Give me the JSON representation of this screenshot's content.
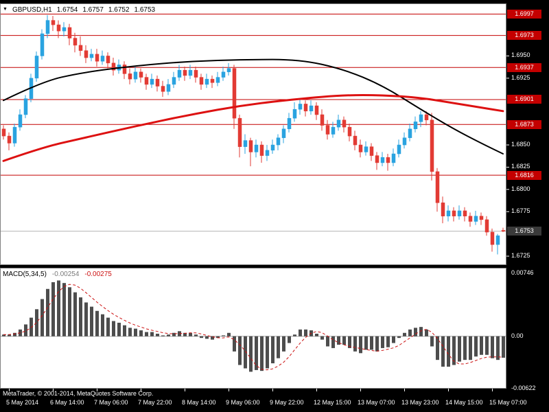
{
  "header": {
    "symbol": "GBPUSD,H1",
    "ohlc": [
      "1.6754",
      "1.6757",
      "1.6752",
      "1.6753"
    ]
  },
  "indicator": {
    "name": "MACD(5,34,5)",
    "value": "-0.00254",
    "signal": "-0.00275"
  },
  "footer": {
    "copyright": "MetaTrader, © 2001-2014, MetaQuotes Software Corp."
  },
  "colors": {
    "up_candle": "#2aa3e0",
    "down_candle": "#e23b34",
    "level_line": "#c40000",
    "level_badge": "#c40000",
    "current_badge": "#3a3a3a",
    "current_line": "#b4b4b4",
    "ma_black": "#000000",
    "ma_red": "#dd1111",
    "histogram": "#4d4d4d",
    "signal_line": "#cc1111",
    "zero_line": "#a0a0a0",
    "panel_bg": "#ffffff",
    "panel_border": "#808080",
    "axis_text": "#ffffff"
  },
  "price_axis": {
    "plain": [
      {
        "label": "1.6950",
        "value": 1.695
      },
      {
        "label": "1.6925",
        "value": 1.6925
      },
      {
        "label": "1.6850",
        "value": 1.685
      },
      {
        "label": "1.6825",
        "value": 1.6825
      },
      {
        "label": "1.6800",
        "value": 1.68
      },
      {
        "label": "1.6775",
        "value": 1.6775
      },
      {
        "label": "1.6725",
        "value": 1.6725
      }
    ],
    "current": {
      "label": "1.6753",
      "value": 1.6753
    }
  },
  "macd_axis": {
    "ticks": [
      {
        "label": "0.00746",
        "value": 0.00746
      },
      {
        "label": "0.00",
        "value": 0
      },
      {
        "label": "-0.00622",
        "value": -0.00622
      }
    ]
  },
  "time_axis": {
    "labels": [
      {
        "index": 1,
        "label": "5 May 2014"
      },
      {
        "index": 9,
        "label": "6 May 14:00"
      },
      {
        "index": 17,
        "label": "7 May 06:00"
      },
      {
        "index": 25,
        "label": "7 May 22:00"
      },
      {
        "index": 33,
        "label": "8 May 14:00"
      },
      {
        "index": 41,
        "label": "9 May 06:00"
      },
      {
        "index": 49,
        "label": "9 May 22:00"
      },
      {
        "index": 57,
        "label": "12 May 15:00"
      },
      {
        "index": 65,
        "label": "13 May 07:00"
      },
      {
        "index": 73,
        "label": "13 May 23:00"
      },
      {
        "index": 81,
        "label": "14 May 15:00"
      },
      {
        "index": 89,
        "label": "15 May 07:00"
      }
    ]
  },
  "chart_data": [
    {
      "type": "candlestick",
      "title": "GBPUSD,H1",
      "symbol": "GBPUSD",
      "timeframe": "H1",
      "hours_per_bar": 2,
      "ylim": [
        1.6715,
        1.7009
      ],
      "current_price": 1.6753,
      "levels": [
        {
          "label": "1.6997",
          "value": 1.6997
        },
        {
          "label": "1.6973",
          "value": 1.6973
        },
        {
          "label": "1.6937",
          "value": 1.6937
        },
        {
          "label": "1.6901",
          "value": 1.6901
        },
        {
          "label": "1.6873",
          "value": 1.6873
        },
        {
          "label": "1.6816",
          "value": 1.6816
        }
      ],
      "candles": [
        [
          1.6868,
          1.6872,
          1.6856,
          1.686
        ],
        [
          1.686,
          1.6864,
          1.6844,
          1.6852
        ],
        [
          1.6852,
          1.6874,
          1.6848,
          1.687
        ],
        [
          1.687,
          1.689,
          1.6866,
          1.6884
        ],
        [
          1.6884,
          1.6906,
          1.688,
          1.6902
        ],
        [
          1.6902,
          1.693,
          1.6898,
          1.6925
        ],
        [
          1.6925,
          1.6955,
          1.6921,
          1.695
        ],
        [
          1.695,
          1.698,
          1.6946,
          1.6975
        ],
        [
          1.6975,
          1.6996,
          1.697,
          1.699
        ],
        [
          1.699,
          1.6995,
          1.6978,
          1.6985
        ],
        [
          1.6985,
          1.699,
          1.697,
          1.6978
        ],
        [
          1.6978,
          1.6988,
          1.6972,
          1.6982
        ],
        [
          1.6982,
          1.6986,
          1.6962,
          1.697
        ],
        [
          1.697,
          1.6976,
          1.6954,
          1.6962
        ],
        [
          1.6962,
          1.6972,
          1.695,
          1.6956
        ],
        [
          1.6956,
          1.6962,
          1.6942,
          1.6948
        ],
        [
          1.6948,
          1.6958,
          1.6944,
          1.6952
        ],
        [
          1.6952,
          1.6958,
          1.6938,
          1.6944
        ],
        [
          1.6944,
          1.6956,
          1.694,
          1.695
        ],
        [
          1.695,
          1.6954,
          1.6936,
          1.6942
        ],
        [
          1.6942,
          1.6948,
          1.6928,
          1.6934
        ],
        [
          1.6934,
          1.6946,
          1.693,
          1.694
        ],
        [
          1.694,
          1.6944,
          1.6924,
          1.693
        ],
        [
          1.693,
          1.6936,
          1.6918,
          1.6924
        ],
        [
          1.6924,
          1.6938,
          1.692,
          1.6932
        ],
        [
          1.6932,
          1.6936,
          1.692,
          1.6926
        ],
        [
          1.6926,
          1.693,
          1.6912,
          1.6918
        ],
        [
          1.6918,
          1.693,
          1.6914,
          1.6924
        ],
        [
          1.6924,
          1.6928,
          1.691,
          1.6916
        ],
        [
          1.6916,
          1.6922,
          1.6904,
          1.691
        ],
        [
          1.691,
          1.6924,
          1.6906,
          1.6918
        ],
        [
          1.6918,
          1.6932,
          1.6914,
          1.6926
        ],
        [
          1.6926,
          1.694,
          1.6922,
          1.6934
        ],
        [
          1.6934,
          1.6938,
          1.6922,
          1.6928
        ],
        [
          1.6928,
          1.694,
          1.6924,
          1.6934
        ],
        [
          1.6934,
          1.6938,
          1.692,
          1.6926
        ],
        [
          1.6926,
          1.693,
          1.6912,
          1.6918
        ],
        [
          1.6918,
          1.693,
          1.6914,
          1.6924
        ],
        [
          1.6924,
          1.6928,
          1.6914,
          1.692
        ],
        [
          1.692,
          1.6932,
          1.6916,
          1.6926
        ],
        [
          1.6926,
          1.6938,
          1.6922,
          1.6932
        ],
        [
          1.6932,
          1.6942,
          1.6928,
          1.6936
        ],
        [
          1.6936,
          1.694,
          1.6868,
          1.688
        ],
        [
          1.688,
          1.6884,
          1.6836,
          1.6848
        ],
        [
          1.6848,
          1.6862,
          1.684,
          1.6855
        ],
        [
          1.6855,
          1.6858,
          1.6826,
          1.6842
        ],
        [
          1.6842,
          1.6856,
          1.6836,
          1.685
        ],
        [
          1.685,
          1.6854,
          1.683,
          1.6838
        ],
        [
          1.6838,
          1.685,
          1.6832,
          1.6844
        ],
        [
          1.6844,
          1.6856,
          1.684,
          1.685
        ],
        [
          1.685,
          1.6862,
          1.6844,
          1.6858
        ],
        [
          1.6858,
          1.6872,
          1.6852,
          1.6868
        ],
        [
          1.6868,
          1.6886,
          1.6864,
          1.688
        ],
        [
          1.688,
          1.6898,
          1.6876,
          1.689
        ],
        [
          1.689,
          1.6901,
          1.6884,
          1.6896
        ],
        [
          1.6896,
          1.69,
          1.6882,
          1.6888
        ],
        [
          1.6888,
          1.69,
          1.6884,
          1.6894
        ],
        [
          1.6894,
          1.6898,
          1.6878,
          1.6884
        ],
        [
          1.6884,
          1.689,
          1.6866,
          1.6872
        ],
        [
          1.6872,
          1.6878,
          1.6856,
          1.6862
        ],
        [
          1.6862,
          1.6876,
          1.6858,
          1.687
        ],
        [
          1.687,
          1.6884,
          1.6866,
          1.6878
        ],
        [
          1.6878,
          1.6882,
          1.6864,
          1.687
        ],
        [
          1.687,
          1.6874,
          1.6854,
          1.686
        ],
        [
          1.686,
          1.6866,
          1.6844,
          1.685
        ],
        [
          1.685,
          1.6856,
          1.6836,
          1.6842
        ],
        [
          1.6842,
          1.6854,
          1.6838,
          1.6848
        ],
        [
          1.6848,
          1.6852,
          1.6832,
          1.6838
        ],
        [
          1.6838,
          1.6842,
          1.6822,
          1.683
        ],
        [
          1.683,
          1.6842,
          1.6826,
          1.6836
        ],
        [
          1.6836,
          1.684,
          1.6821,
          1.683
        ],
        [
          1.683,
          1.6846,
          1.6826,
          1.684
        ],
        [
          1.684,
          1.6856,
          1.6836,
          1.685
        ],
        [
          1.685,
          1.6864,
          1.6846,
          1.6858
        ],
        [
          1.6858,
          1.6874,
          1.6854,
          1.6868
        ],
        [
          1.6868,
          1.6882,
          1.6864,
          1.6876
        ],
        [
          1.6876,
          1.6888,
          1.687,
          1.6884
        ],
        [
          1.6884,
          1.6888,
          1.6872,
          1.6878
        ],
        [
          1.6878,
          1.6886,
          1.681,
          1.682
        ],
        [
          1.682,
          1.6824,
          1.6775,
          1.6785
        ],
        [
          1.6785,
          1.6792,
          1.6762,
          1.677
        ],
        [
          1.677,
          1.6782,
          1.6764,
          1.6776
        ],
        [
          1.6776,
          1.678,
          1.6764,
          1.677
        ],
        [
          1.677,
          1.6782,
          1.6766,
          1.6776
        ],
        [
          1.6776,
          1.678,
          1.6764,
          1.677
        ],
        [
          1.677,
          1.6774,
          1.6758,
          1.6764
        ],
        [
          1.6764,
          1.6776,
          1.676,
          1.677
        ],
        [
          1.677,
          1.6774,
          1.676,
          1.6766
        ],
        [
          1.6766,
          1.677,
          1.6748,
          1.6752
        ],
        [
          1.6752,
          1.6756,
          1.673,
          1.6738
        ],
        [
          1.6738,
          1.675,
          1.6727,
          1.6748
        ],
        [
          1.6754,
          1.6757,
          1.6752,
          1.6753
        ]
      ],
      "overlays": [
        {
          "name": "ma-black",
          "color": "#000000",
          "width": 2,
          "points": [
            [
              0,
              1.69
            ],
            [
              7,
              1.6921
            ],
            [
              14,
              1.6931
            ],
            [
              24,
              1.6939
            ],
            [
              34,
              1.6944
            ],
            [
              44,
              1.6946
            ],
            [
              54,
              1.6946
            ],
            [
              62,
              1.6935
            ],
            [
              69,
              1.6917
            ],
            [
              76,
              1.689
            ],
            [
              82,
              1.6868
            ],
            [
              87,
              1.6852
            ],
            [
              91,
              1.684
            ]
          ]
        },
        {
          "name": "ma-red",
          "color": "#dd1111",
          "width": 3,
          "points": [
            [
              0,
              1.6832
            ],
            [
              7,
              1.6847
            ],
            [
              14,
              1.6857
            ],
            [
              24,
              1.6871
            ],
            [
              34,
              1.6884
            ],
            [
              44,
              1.6895
            ],
            [
              54,
              1.6902
            ],
            [
              62,
              1.6906
            ],
            [
              69,
              1.6906
            ],
            [
              76,
              1.6903
            ],
            [
              82,
              1.6897
            ],
            [
              87,
              1.6892
            ],
            [
              91,
              1.6888
            ]
          ]
        }
      ]
    },
    {
      "type": "bar",
      "title": "MACD(5,34,5)",
      "ylim": [
        -0.0062,
        0.0081
      ],
      "signal_period": 5,
      "last_value": -0.00254,
      "last_signal": -0.00275,
      "values": [
        0.0002,
        0.0002,
        0.0004,
        0.0008,
        0.0014,
        0.0022,
        0.0032,
        0.0044,
        0.0056,
        0.0064,
        0.0066,
        0.0063,
        0.0058,
        0.0052,
        0.0046,
        0.004,
        0.0035,
        0.003,
        0.0026,
        0.0022,
        0.0018,
        0.0016,
        0.0013,
        0.001,
        0.0009,
        0.0007,
        0.0005,
        0.0005,
        0.0003,
        0.0001,
        0.0002,
        0.0004,
        0.0006,
        0.0004,
        0.0004,
        0.0002,
        -0.0002,
        -0.0003,
        -0.0004,
        -0.0002,
        0.0001,
        0.0004,
        -0.0018,
        -0.0034,
        -0.0038,
        -0.0042,
        -0.004,
        -0.0041,
        -0.0038,
        -0.0032,
        -0.0026,
        -0.0018,
        -0.0008,
        0.0002,
        0.0008,
        0.0008,
        0.0007,
        0.0003,
        -0.0004,
        -0.0012,
        -0.0014,
        -0.001,
        -0.001,
        -0.0014,
        -0.0018,
        -0.002,
        -0.0016,
        -0.0016,
        -0.0018,
        -0.0014,
        -0.0013,
        -0.0008,
        -0.0002,
        0.0004,
        0.0008,
        0.001,
        0.0011,
        0.0008,
        -0.0012,
        -0.0028,
        -0.0036,
        -0.0036,
        -0.0034,
        -0.003,
        -0.0028,
        -0.0028,
        -0.0024,
        -0.0022,
        -0.0022,
        -0.0026,
        -0.0028,
        -0.00254
      ]
    }
  ]
}
